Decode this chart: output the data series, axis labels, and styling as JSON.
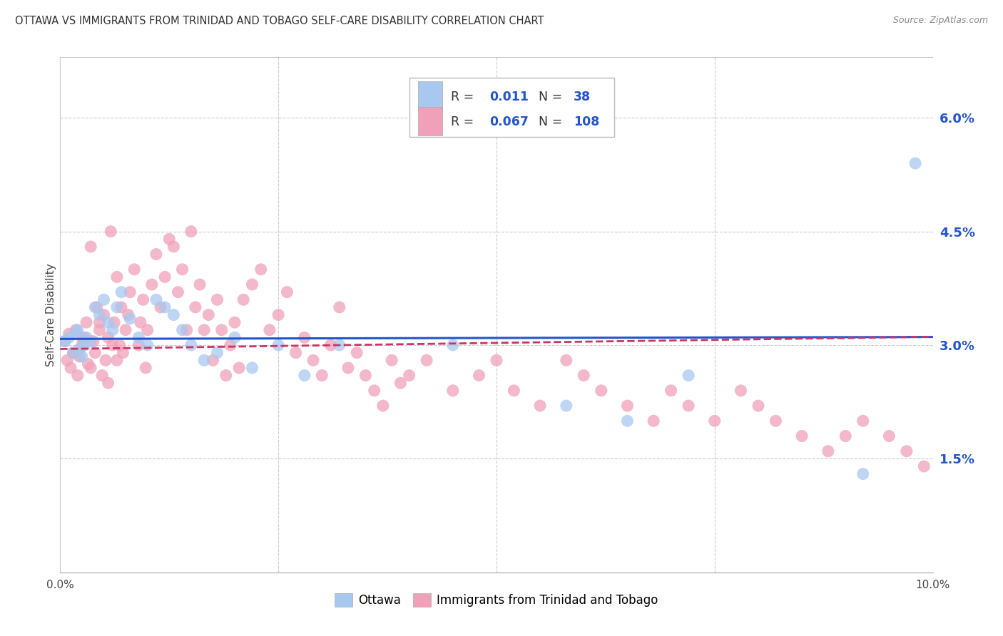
{
  "title": "OTTAWA VS IMMIGRANTS FROM TRINIDAD AND TOBAGO SELF-CARE DISABILITY CORRELATION CHART",
  "source": "Source: ZipAtlas.com",
  "ylabel": "Self-Care Disability",
  "xlim": [
    0.0,
    10.0
  ],
  "ylim": [
    0.0,
    6.8
  ],
  "color_ottawa": "#a8c8f0",
  "color_immigrants": "#f0a0b8",
  "color_line_ottawa": "#2255cc",
  "color_line_immigrants": "#cc3366",
  "background_color": "#ffffff",
  "grid_color": "#cccccc",
  "ottawa_x": [
    0.05,
    0.1,
    0.15,
    0.18,
    0.2,
    0.22,
    0.25,
    0.28,
    0.3,
    0.35,
    0.4,
    0.45,
    0.5,
    0.55,
    0.6,
    0.65,
    0.7,
    0.8,
    0.9,
    1.0,
    1.1,
    1.2,
    1.3,
    1.4,
    1.5,
    1.65,
    1.8,
    2.0,
    2.2,
    2.5,
    2.8,
    3.2,
    4.5,
    5.8,
    6.5,
    7.2,
    9.2,
    9.8
  ],
  "ottawa_y": [
    3.05,
    3.1,
    2.9,
    3.15,
    3.2,
    2.95,
    2.85,
    3.0,
    3.1,
    3.05,
    3.5,
    3.4,
    3.6,
    3.3,
    3.2,
    3.5,
    3.7,
    3.35,
    3.1,
    3.0,
    3.6,
    3.5,
    3.4,
    3.2,
    3.0,
    2.8,
    2.9,
    3.1,
    2.7,
    3.0,
    2.6,
    3.0,
    3.0,
    2.2,
    2.0,
    2.6,
    1.3,
    5.4
  ],
  "immigrants_x": [
    0.05,
    0.08,
    0.1,
    0.12,
    0.15,
    0.18,
    0.2,
    0.22,
    0.25,
    0.28,
    0.3,
    0.32,
    0.35,
    0.38,
    0.4,
    0.42,
    0.45,
    0.48,
    0.5,
    0.52,
    0.55,
    0.58,
    0.6,
    0.62,
    0.65,
    0.68,
    0.7,
    0.72,
    0.75,
    0.78,
    0.8,
    0.85,
    0.9,
    0.92,
    0.95,
    0.98,
    1.0,
    1.05,
    1.1,
    1.15,
    1.2,
    1.25,
    1.3,
    1.35,
    1.4,
    1.45,
    1.5,
    1.55,
    1.6,
    1.65,
    1.7,
    1.75,
    1.8,
    1.85,
    1.9,
    1.95,
    2.0,
    2.05,
    2.1,
    2.2,
    2.3,
    2.4,
    2.5,
    2.6,
    2.7,
    2.8,
    2.9,
    3.0,
    3.1,
    3.2,
    3.3,
    3.4,
    3.5,
    3.6,
    3.7,
    3.8,
    3.9,
    4.0,
    4.2,
    4.5,
    4.8,
    5.0,
    5.2,
    5.5,
    5.8,
    6.0,
    6.2,
    6.5,
    6.8,
    7.0,
    7.2,
    7.5,
    7.8,
    8.0,
    8.2,
    8.5,
    8.8,
    9.0,
    9.2,
    9.5,
    9.7,
    9.9,
    0.15,
    0.25,
    0.35,
    0.45,
    0.55,
    0.65
  ],
  "immigrants_y": [
    3.05,
    2.8,
    3.15,
    2.7,
    2.9,
    3.2,
    2.6,
    2.85,
    3.0,
    3.1,
    3.3,
    2.75,
    4.3,
    3.05,
    2.9,
    3.5,
    3.2,
    2.6,
    3.4,
    2.8,
    3.1,
    4.5,
    3.0,
    3.3,
    3.9,
    3.0,
    3.5,
    2.9,
    3.2,
    3.4,
    3.7,
    4.0,
    3.0,
    3.3,
    3.6,
    2.7,
    3.2,
    3.8,
    4.2,
    3.5,
    3.9,
    4.4,
    4.3,
    3.7,
    4.0,
    3.2,
    4.5,
    3.5,
    3.8,
    3.2,
    3.4,
    2.8,
    3.6,
    3.2,
    2.6,
    3.0,
    3.3,
    2.7,
    3.6,
    3.8,
    4.0,
    3.2,
    3.4,
    3.7,
    2.9,
    3.1,
    2.8,
    2.6,
    3.0,
    3.5,
    2.7,
    2.9,
    2.6,
    2.4,
    2.2,
    2.8,
    2.5,
    2.6,
    2.8,
    2.4,
    2.6,
    2.8,
    2.4,
    2.2,
    2.8,
    2.6,
    2.4,
    2.2,
    2.0,
    2.4,
    2.2,
    2.0,
    2.4,
    2.2,
    2.0,
    1.8,
    1.6,
    1.8,
    2.0,
    1.8,
    1.6,
    1.4,
    2.9,
    3.1,
    2.7,
    3.3,
    2.5,
    2.8
  ]
}
